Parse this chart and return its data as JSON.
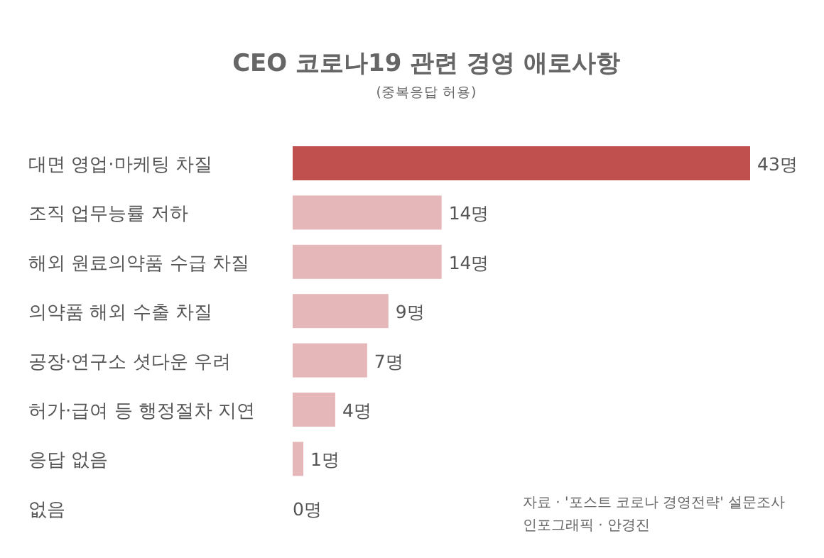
{
  "chart_data": {
    "type": "bar",
    "orientation": "horizontal",
    "title": "CEO 코로나19 관련 경영 애로사항",
    "subtitle": "(중복응답 허용)",
    "categories": [
      "대면 영업·마케팅 차질",
      "조직 업무능률 저하",
      "해외 원료의약품 수급 차질",
      "의약품 해외 수출 차질",
      "공장·연구소 셧다운 우려",
      "허가·급여 등 행정절차 지연",
      "응답 없음",
      "없음"
    ],
    "values": [
      43,
      14,
      14,
      9,
      7,
      4,
      1,
      0
    ],
    "colors": [
      "#c0504d",
      "#e6b7b8",
      "#e6b7b8",
      "#e6b7b8",
      "#e6b7b8",
      "#e6b7b8",
      "#e6b7b8",
      "#e6b7b8"
    ],
    "value_labels": [
      "43명",
      "14명",
      "14명",
      "9명",
      "7명",
      "4명",
      "1명",
      "0명"
    ],
    "annotations": [
      "자료 · '포스트 코로나 경영전략' 설문조사",
      "인포그래픽 · 안경진"
    ]
  }
}
